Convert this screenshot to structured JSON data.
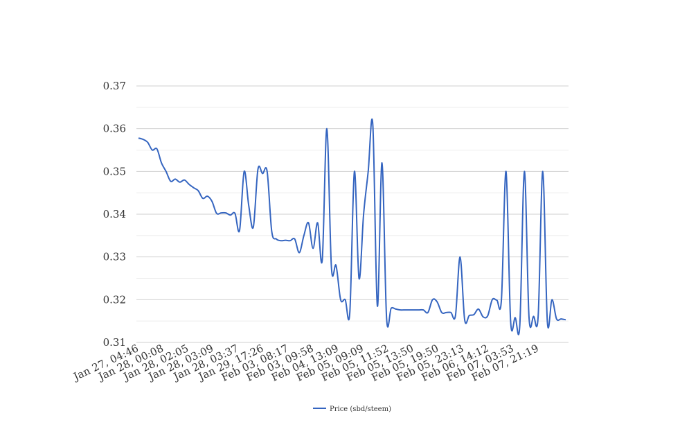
{
  "chart_data": {
    "type": "line",
    "title": "",
    "xlabel": "",
    "ylabel": "",
    "ylim": [
      0.31,
      0.37
    ],
    "yticks": [
      "0.31",
      "0.32",
      "0.33",
      "0.34",
      "0.35",
      "0.36",
      "0.37"
    ],
    "ytick_values": [
      0.31,
      0.32,
      0.33,
      0.34,
      0.35,
      0.36,
      0.37
    ],
    "grid": true,
    "legend_position": "bottom",
    "xtick_labels": [
      "Jan 27, 04:46",
      "Jan 28, 00:08",
      "Jan 28, 02:05",
      "Jan 28, 03:09",
      "Jan 28, 03:37",
      "Jan 29, 17:26",
      "Feb 03, 08:17",
      "Feb 03, 09:58",
      "Feb 04, 13:09",
      "Feb 05, 09:09",
      "Feb 05, 11:52",
      "Feb 05, 13:50",
      "Feb 05, 19:50",
      "Feb 05, 23:13",
      "Feb 06, 14:12",
      "Feb 07, 03:53",
      "Feb 07, 21:19"
    ],
    "series": [
      {
        "name": "Price (sbd/steem)",
        "color": "#3565c0",
        "values": [
          0.3578,
          0.3575,
          0.3568,
          0.355,
          0.3553,
          0.352,
          0.35,
          0.3477,
          0.3482,
          0.3475,
          0.348,
          0.347,
          0.3462,
          0.3455,
          0.3437,
          0.3442,
          0.343,
          0.3402,
          0.3403,
          0.3403,
          0.3398,
          0.3402,
          0.3362,
          0.35,
          0.342,
          0.337,
          0.3505,
          0.3495,
          0.35,
          0.336,
          0.3342,
          0.3338,
          0.3339,
          0.3338,
          0.3342,
          0.331,
          0.335,
          0.338,
          0.332,
          0.338,
          0.3293,
          0.36,
          0.3275,
          0.328,
          0.32,
          0.32,
          0.317,
          0.35,
          0.325,
          0.34,
          0.35,
          0.361,
          0.3185,
          0.352,
          0.3157,
          0.318,
          0.3178,
          0.3176,
          0.3176,
          0.3176,
          0.3176,
          0.3176,
          0.3176,
          0.317,
          0.32,
          0.3195,
          0.317,
          0.317,
          0.317,
          0.3163,
          0.33,
          0.3153,
          0.3163,
          0.3165,
          0.3178,
          0.316,
          0.3162,
          0.32,
          0.3199,
          0.32,
          0.35,
          0.315,
          0.3158,
          0.314,
          0.35,
          0.316,
          0.3161,
          0.3162,
          0.35,
          0.3148,
          0.32,
          0.3155,
          0.3155,
          0.3153
        ]
      }
    ]
  }
}
